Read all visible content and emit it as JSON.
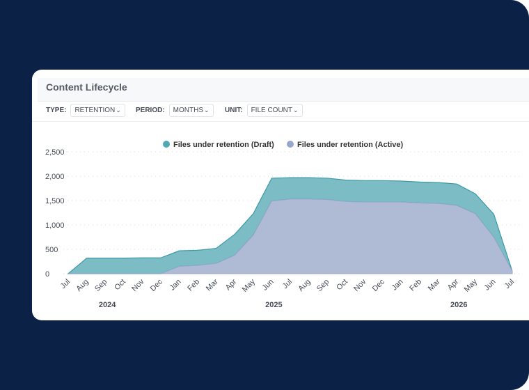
{
  "header": {
    "title": "Content Lifecycle"
  },
  "filters": [
    {
      "label": "TYPE:",
      "value": "RETENTION"
    },
    {
      "label": "PERIOD:",
      "value": "MONTHS"
    },
    {
      "label": "UNIT:",
      "value": "FILE COUNT"
    }
  ],
  "chart_data": {
    "type": "area",
    "stacked": true,
    "categories": [
      "Jul",
      "Aug",
      "Sep",
      "Oct",
      "Nov",
      "Dec",
      "Jan",
      "Feb",
      "Mar",
      "Apr",
      "May",
      "Jun",
      "Jul",
      "Aug",
      "Sep",
      "Oct",
      "Nov",
      "Dec",
      "Jan",
      "Feb",
      "Mar",
      "Apr",
      "May",
      "Jun",
      "Jul"
    ],
    "year_labels": [
      {
        "label": "2024",
        "at": "Sep"
      },
      {
        "label": "2025",
        "at": "Jun"
      },
      {
        "label": "2026",
        "at": "Apr"
      }
    ],
    "series": [
      {
        "name": "Files under retention (Draft)",
        "color": "#4fa8b3",
        "values": [
          0,
          320,
          320,
          320,
          325,
          325,
          320,
          310,
          310,
          430,
          440,
          470,
          440,
          440,
          440,
          440,
          440,
          440,
          430,
          430,
          430,
          440,
          410,
          470,
          0
        ]
      },
      {
        "name": "Files under retention (Active)",
        "color": "#98a6cc",
        "values": [
          0,
          0,
          0,
          0,
          0,
          0,
          150,
          170,
          210,
          380,
          790,
          1490,
          1530,
          1530,
          1520,
          1480,
          1470,
          1470,
          1470,
          1450,
          1440,
          1400,
          1230,
          750,
          50
        ]
      }
    ],
    "yticks": [
      "0",
      "500",
      "1,000",
      "1,500",
      "2,000",
      "2,500"
    ],
    "ylim": [
      0,
      2500
    ],
    "grid": true,
    "legend": "top-center",
    "xlabel": "",
    "ylabel": ""
  }
}
